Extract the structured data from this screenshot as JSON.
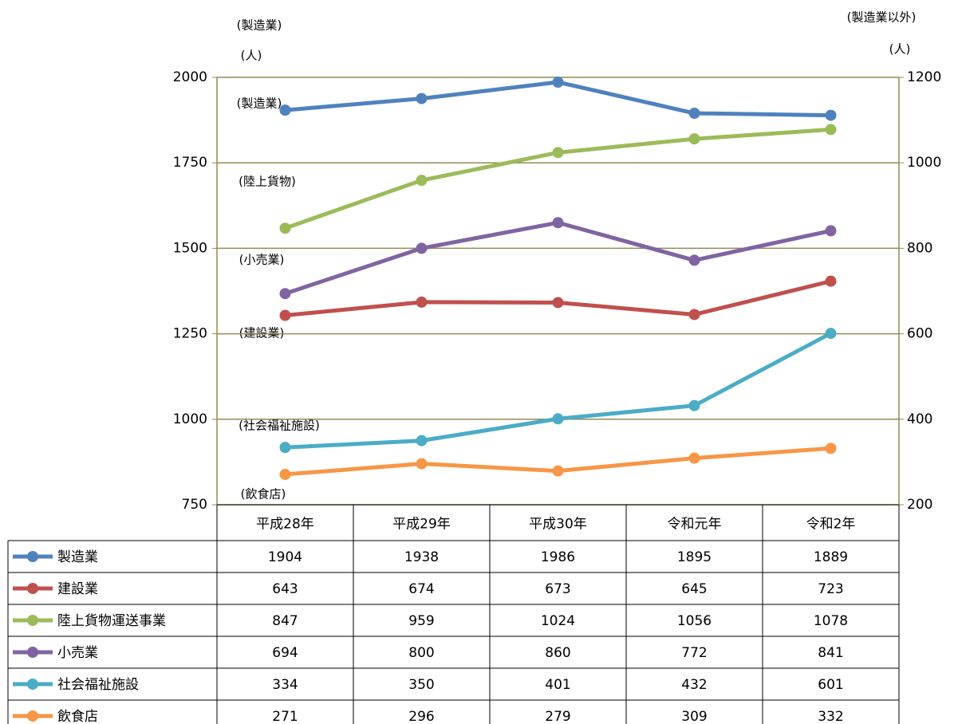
{
  "chart_data": {
    "type": "line",
    "y_axis_label": "(製造業)",
    "y_unit_label": "(人)",
    "y2_axis_label": "(製造業以外)",
    "y2_unit_label": "(人)",
    "categories": [
      "平成28年",
      "平成29年",
      "平成30年",
      "令和元年",
      "令和2年"
    ],
    "ylim": [
      750,
      2000
    ],
    "yticks": [
      750,
      1000,
      1250,
      1500,
      1750,
      2000
    ],
    "y2lim": [
      200,
      1200
    ],
    "y2ticks": [
      200,
      400,
      600,
      800,
      1000,
      1200
    ],
    "grid": true,
    "series": [
      {
        "name": "製造業",
        "color": "#4f81bd",
        "axis": "y",
        "values": [
          1904,
          1938,
          1986,
          1895,
          1889
        ]
      },
      {
        "name": "建設業",
        "color": "#c0504d",
        "axis": "y2",
        "values": [
          643,
          674,
          673,
          645,
          723
        ]
      },
      {
        "name": "陸上貨物運送事業",
        "color": "#9bbb59",
        "axis": "y2",
        "values": [
          847,
          959,
          1024,
          1056,
          1078
        ]
      },
      {
        "name": "小売業",
        "color": "#8064a2",
        "axis": "y2",
        "values": [
          694,
          800,
          860,
          772,
          841
        ]
      },
      {
        "name": "社会福祉施設",
        "color": "#4bacc6",
        "axis": "y2",
        "values": [
          334,
          350,
          401,
          432,
          601
        ]
      },
      {
        "name": "飲食店",
        "color": "#f79646",
        "axis": "y2",
        "values": [
          271,
          296,
          279,
          309,
          332
        ]
      }
    ],
    "annotations": [
      "(製造業)",
      "(陸上貨物)",
      "(小売業)",
      "(建設業)",
      "(社会福祉施設)",
      "(飲食店)"
    ]
  }
}
